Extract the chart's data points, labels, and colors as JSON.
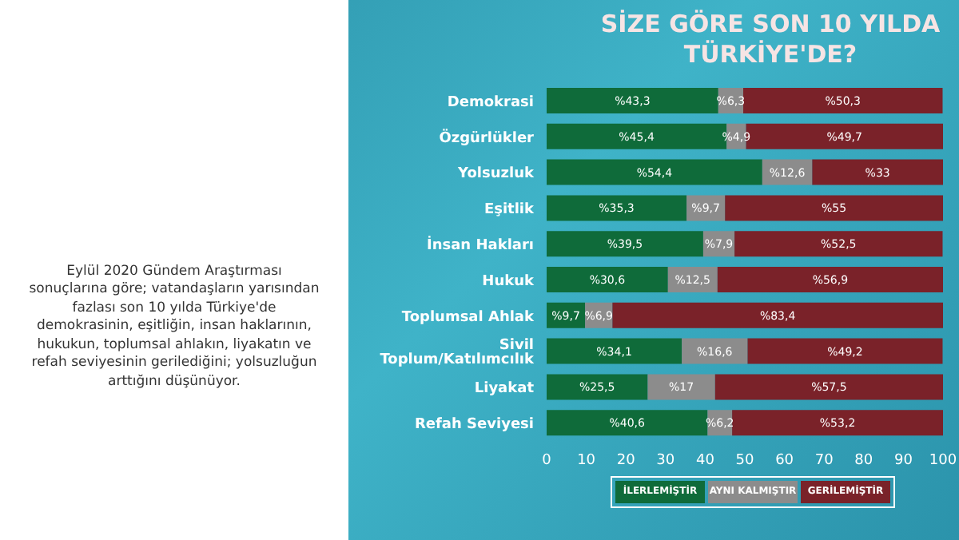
{
  "chart_data": {
    "type": "bar",
    "orientation": "horizontal",
    "stacked": true,
    "title": "SİZE GÖRE SON 10 YILDA TÜRKİYE'DE?",
    "categories": [
      "Demokrasi",
      "Özgürlükler",
      "Yolsuzluk",
      "Eşitlik",
      "İnsan Hakları",
      "Hukuk",
      "Toplumsal Ahlak",
      "Sivil Toplum/Katılımcılık",
      "Liyakat",
      "Refah Seviyesi"
    ],
    "series": [
      {
        "name": "İLERLEMİŞTİR",
        "color": "#0f6b3a",
        "values": [
          43.3,
          45.4,
          54.4,
          35.3,
          39.5,
          30.6,
          9.7,
          34.1,
          25.5,
          40.6
        ],
        "value_labels": [
          "%43,3",
          "%45,4",
          "%54,4",
          "%35,3",
          "%39,5",
          "%30,6",
          "%9,7",
          "%34,1",
          "%25,5",
          "%40,6"
        ]
      },
      {
        "name": "AYNI KALMIŞTIR",
        "color": "#8c8c8c",
        "values": [
          6.3,
          4.9,
          12.6,
          9.7,
          7.9,
          12.5,
          6.9,
          16.6,
          17,
          6.2
        ],
        "value_labels": [
          "%6,3",
          "%4,9",
          "%12,6",
          "%9,7",
          "%7,9",
          "%12,5",
          "%6,9",
          "%16,6",
          "%17",
          "%6,2"
        ]
      },
      {
        "name": "GERİLEMİŞTİR",
        "color": "#7a2229",
        "values": [
          50.3,
          49.7,
          33,
          55,
          52.5,
          56.9,
          83.4,
          49.2,
          57.5,
          53.2
        ],
        "value_labels": [
          "%50,3",
          "%49,7",
          "%33",
          "%55",
          "%52,5",
          "%56,9",
          "%83,4",
          "%49,2",
          "%57,5",
          "%53,2"
        ]
      }
    ],
    "xlim": [
      0,
      100
    ],
    "xticks": [
      0,
      10,
      20,
      30,
      40,
      50,
      60,
      70,
      80,
      90,
      100
    ],
    "grid": false,
    "legend": "bottom",
    "annotations": [
      "Eylül 2020 Gündem Araştırması sonuçlarına göre; vatandaşların yarısından fazlası son 10 yılda Türkiye'de demokrasinin, eşitliğin, insan haklarının, hukukun, toplumsal ahlakın, liyakatın ve refah seviyesinin gerilediğini; yolsuzluğun arttığını düşünüyor."
    ]
  }
}
